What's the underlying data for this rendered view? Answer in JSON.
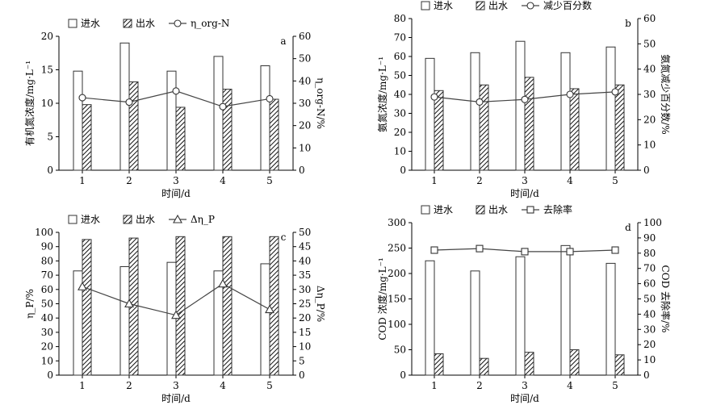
{
  "chart_data": [
    {
      "type": "bar",
      "panel_label": "a",
      "categories": [
        "1",
        "2",
        "3",
        "4",
        "5"
      ],
      "xlabel": "时间/d",
      "ylabel": "有机氮浓度/mg·L⁻¹",
      "ylabel_right": "η_org-N/%",
      "ylim": [
        0,
        20
      ],
      "ylim_right": [
        0,
        60
      ],
      "yticks": [
        0,
        5,
        10,
        15,
        20
      ],
      "yticks_right": [
        0,
        10,
        20,
        30,
        40,
        50,
        60
      ],
      "legend": [
        "进水",
        "出水",
        "η_org-N"
      ],
      "series": [
        {
          "values": [
            14.8,
            19.0,
            14.8,
            17.0,
            15.6
          ]
        },
        {
          "values": [
            9.8,
            13.2,
            9.4,
            12.1,
            10.6
          ]
        }
      ],
      "line_series": {
        "axis": "right",
        "marker": "circle",
        "values": [
          32.5,
          30.5,
          35.5,
          28.5,
          32.0
        ]
      }
    },
    {
      "type": "bar",
      "panel_label": "b",
      "categories": [
        "1",
        "2",
        "3",
        "4",
        "5"
      ],
      "xlabel": "时间/d",
      "ylabel": "氨氮浓度/mg·L⁻¹",
      "ylabel_right": "氨氮减少百分数/%",
      "ylim": [
        0,
        80
      ],
      "ylim_right": [
        0,
        60
      ],
      "yticks": [
        0,
        10,
        20,
        30,
        40,
        50,
        60,
        70,
        80
      ],
      "yticks_right": [
        0,
        10,
        20,
        30,
        40,
        50,
        60
      ],
      "legend": [
        "进水",
        "出水",
        "减少百分数"
      ],
      "series": [
        {
          "values": [
            59,
            62,
            68,
            62,
            65
          ]
        },
        {
          "values": [
            42,
            45,
            49,
            43,
            45
          ]
        }
      ],
      "line_series": {
        "axis": "right",
        "marker": "circle",
        "values": [
          29,
          27,
          28,
          30,
          31
        ]
      }
    },
    {
      "type": "bar",
      "panel_label": "c",
      "categories": [
        "1",
        "2",
        "3",
        "4",
        "5"
      ],
      "xlabel": "时间/d",
      "ylabel": "η_P/%",
      "ylabel_right": "Δη_P/%",
      "ylim": [
        0,
        100
      ],
      "ylim_right": [
        0,
        50
      ],
      "yticks": [
        0,
        10,
        20,
        30,
        40,
        50,
        60,
        70,
        80,
        90,
        100
      ],
      "yticks_right": [
        0,
        5,
        10,
        15,
        20,
        25,
        30,
        35,
        40,
        45,
        50
      ],
      "legend": [
        "进水",
        "出水",
        "Δη_P"
      ],
      "series": [
        {
          "values": [
            73,
            76,
            79,
            73,
            78
          ]
        },
        {
          "values": [
            95,
            96,
            97,
            97,
            97
          ]
        }
      ],
      "line_series": {
        "axis": "right",
        "marker": "triangle",
        "values": [
          31,
          25,
          21,
          32,
          23
        ]
      }
    },
    {
      "type": "bar",
      "panel_label": "d",
      "categories": [
        "1",
        "2",
        "3",
        "4",
        "5"
      ],
      "xlabel": "时间/d",
      "ylabel": "COD 浓度/mg·L⁻¹",
      "ylabel_right": "COD 去除率/%",
      "ylim": [
        0,
        300
      ],
      "ylim_right": [
        0,
        100
      ],
      "yticks": [
        0,
        50,
        100,
        150,
        200,
        250,
        300
      ],
      "yticks_right": [
        0,
        10,
        20,
        30,
        40,
        50,
        60,
        70,
        80,
        90,
        100
      ],
      "legend": [
        "进水",
        "出水",
        "去除率"
      ],
      "series": [
        {
          "values": [
            225,
            205,
            233,
            255,
            220
          ]
        },
        {
          "values": [
            42,
            33,
            45,
            50,
            40
          ]
        }
      ],
      "line_series": {
        "axis": "right",
        "marker": "square",
        "values": [
          82,
          83,
          81,
          81,
          82
        ]
      }
    }
  ]
}
